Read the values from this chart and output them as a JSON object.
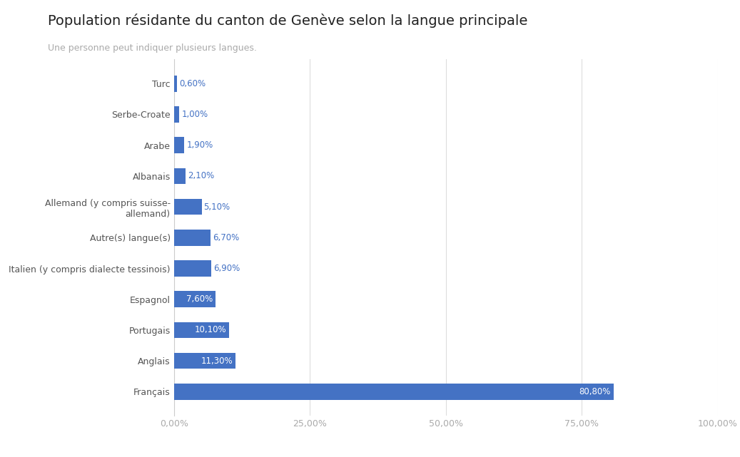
{
  "title": "Population résidante du canton de Genève selon la langue principale",
  "subtitle": "Une personne peut indiquer plusieurs langues.",
  "categories": [
    "Français",
    "Anglais",
    "Portugais",
    "Espagnol",
    "Italien (y compris dialecte tessinois)",
    "Autre(s) langue(s)",
    "Allemand (y compris suisse-\nallemand)",
    "Albanais",
    "Arabe",
    "Serbe-Croate",
    "Turc"
  ],
  "values": [
    80.8,
    11.3,
    10.1,
    7.6,
    6.9,
    6.7,
    5.1,
    2.1,
    1.9,
    1.0,
    0.6
  ],
  "labels": [
    "80,80%",
    "11,30%",
    "10,10%",
    "7,60%",
    "6,90%",
    "6,70%",
    "5,10%",
    "2,10%",
    "1,90%",
    "1,00%",
    "0,60%"
  ],
  "bar_color": "#4472C4",
  "label_color_small": "#4472C4",
  "label_color_large": "#ffffff",
  "background_color": "#ffffff",
  "title_fontsize": 14,
  "subtitle_fontsize": 9,
  "tick_fontsize": 9,
  "label_fontsize": 8.5,
  "ylabel_fontsize": 9,
  "xlim": [
    0,
    100
  ],
  "xticks": [
    0,
    25,
    50,
    75,
    100
  ],
  "xtick_labels": [
    "0,00%",
    "25,00%",
    "50,00%",
    "75,00%",
    "100,00%"
  ],
  "grid_color": "#dddddd",
  "title_color": "#222222",
  "subtitle_color": "#aaaaaa",
  "tick_color": "#aaaaaa",
  "label_threshold": 7.0
}
